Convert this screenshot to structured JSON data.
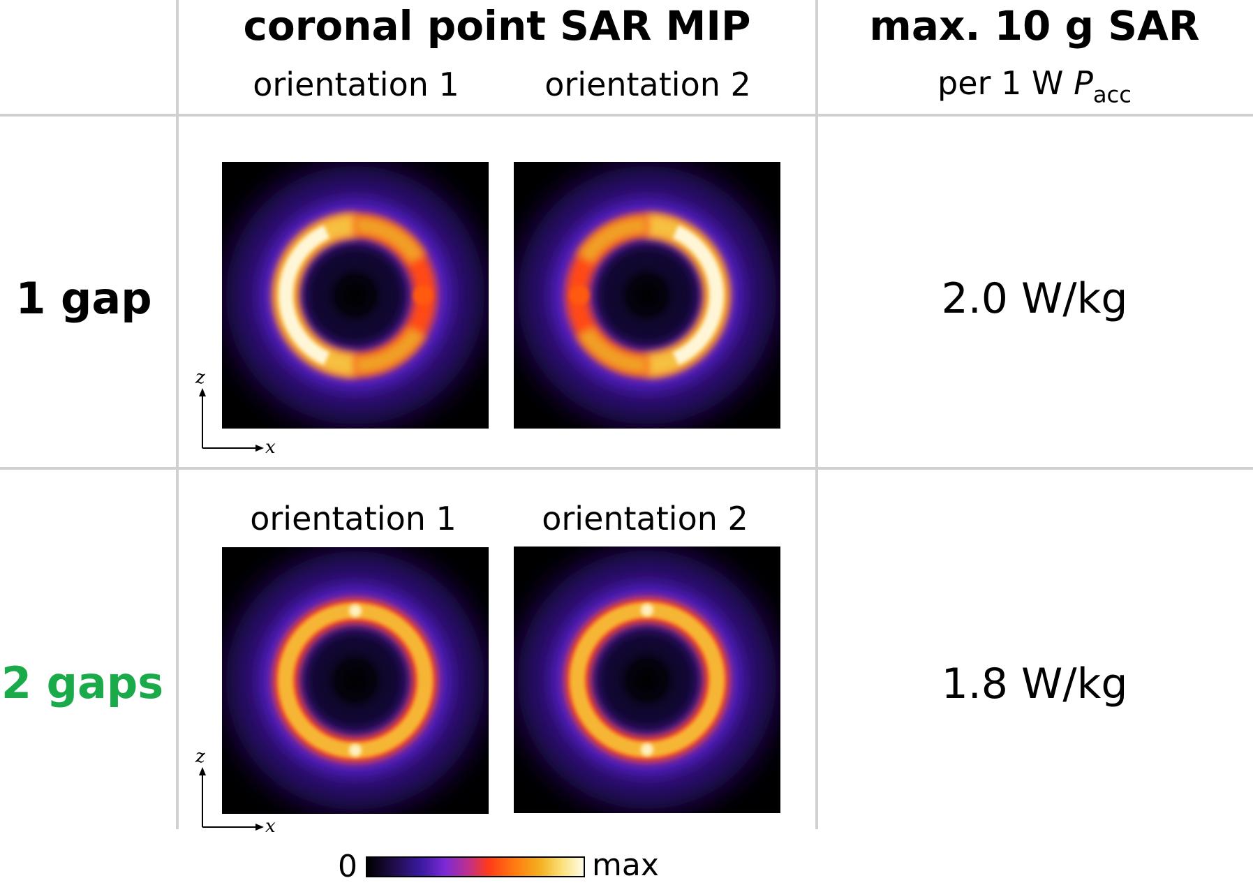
{
  "header": {
    "mip_title": "coronal point SAR MIP",
    "orientation_1": "orientation 1",
    "orientation_2": "orientation 2",
    "sar_title": "max. 10 g SAR",
    "sar_sub_prefix": "per 1 W",
    "sar_sub_symbol": "P",
    "sar_sub_subscript": "acc"
  },
  "rows": [
    {
      "label": "1 gap",
      "label_color": "#000000",
      "value": "2.0 W/kg",
      "orientation_1": "",
      "orientation_2": ""
    },
    {
      "label": "2 gaps",
      "label_color": "#1aaa4a",
      "value": "1.8 W/kg",
      "orientation_1": "orientation 1",
      "orientation_2": "orientation 2"
    }
  ],
  "axes": {
    "vertical": "z",
    "horizontal": "x"
  },
  "colorbar": {
    "min_label": "0",
    "max_label": "max"
  }
}
